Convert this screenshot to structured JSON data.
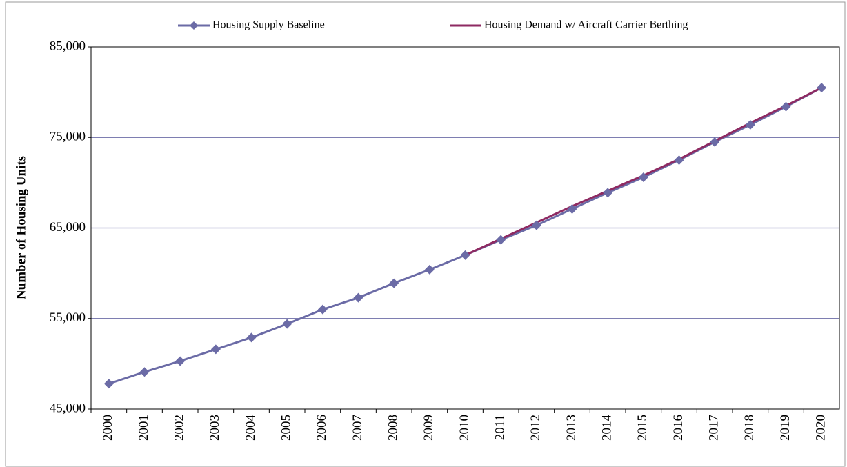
{
  "chart_data": {
    "type": "line",
    "y_label": "Number of Housing Units",
    "categories": [
      "2000",
      "2001",
      "2002",
      "2003",
      "2004",
      "2005",
      "2006",
      "2007",
      "2008",
      "2009",
      "2010",
      "2011",
      "2012",
      "2013",
      "2014",
      "2015",
      "2016",
      "2017",
      "2018",
      "2019",
      "2020"
    ],
    "series": [
      {
        "name": "Housing Supply Baseline",
        "color": "#6b6ba6",
        "marker": "diamond",
        "values": [
          47800,
          49100,
          50300,
          51600,
          52900,
          54400,
          56000,
          57300,
          58900,
          60400,
          62000,
          63700,
          65300,
          67100,
          68900,
          70600,
          72500,
          74500,
          76400,
          78400,
          80500
        ]
      },
      {
        "name": "Housing Demand w/ Aircraft Carrier Berthing",
        "color": "#8e2a62",
        "marker": "none",
        "values": [
          null,
          null,
          null,
          null,
          null,
          null,
          null,
          null,
          null,
          null,
          62000,
          63800,
          65600,
          67400,
          69100,
          70800,
          72600,
          74600,
          76600,
          78500,
          80500
        ]
      }
    ],
    "ylim": [
      45000,
      85000
    ],
    "yticks": [
      {
        "value": 45000,
        "label": "45,000"
      },
      {
        "value": 55000,
        "label": "55,000"
      },
      {
        "value": 65000,
        "label": "65,000"
      },
      {
        "value": 75000,
        "label": "75,000"
      },
      {
        "value": 85000,
        "label": "85,000"
      }
    ],
    "grid": true,
    "legend": "top"
  }
}
